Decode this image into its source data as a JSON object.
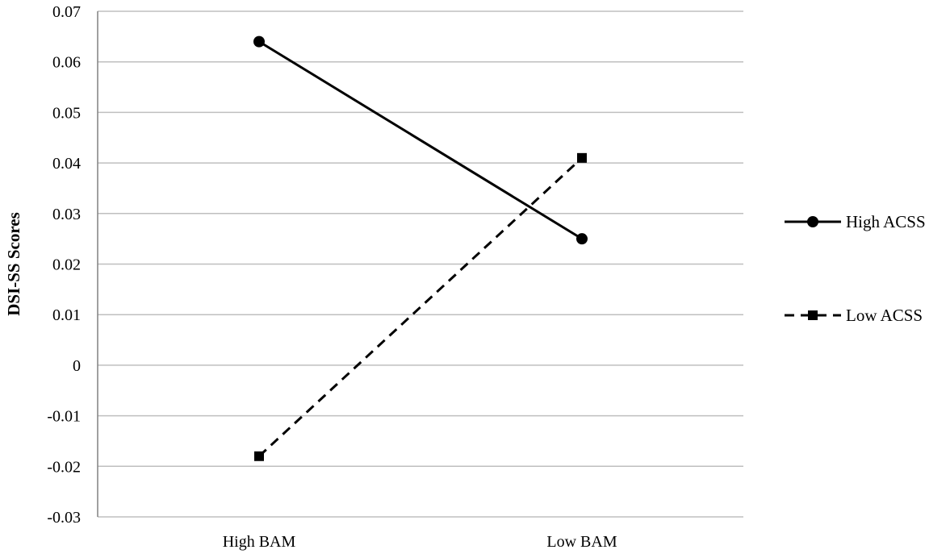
{
  "chart_data": {
    "type": "line",
    "categories": [
      "High BAM",
      "Low BAM"
    ],
    "series": [
      {
        "name": "High ACSS",
        "values": [
          0.064,
          0.025
        ],
        "line_style": "solid",
        "marker": "circle",
        "color": "#000000"
      },
      {
        "name": "Low ACSS",
        "values": [
          -0.018,
          0.041
        ],
        "line_style": "dashed",
        "marker": "square",
        "color": "#000000"
      }
    ],
    "title": "",
    "xlabel": "",
    "ylabel": "DSI-SS Scores",
    "ylim": [
      -0.03,
      0.07
    ],
    "yticks": [
      -0.03,
      -0.02,
      -0.01,
      0,
      0.01,
      0.02,
      0.03,
      0.04,
      0.05,
      0.06,
      0.07
    ],
    "ytick_labels": [
      "-0.03",
      "-0.02",
      "-0.01",
      "0",
      "0.01",
      "0.02",
      "0.03",
      "0.04",
      "0.05",
      "0.06",
      "0.07"
    ],
    "grid": true,
    "gridline_color": "#bfbfbf",
    "legend_position": "right"
  }
}
